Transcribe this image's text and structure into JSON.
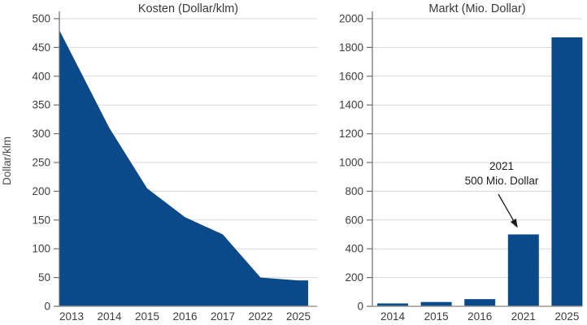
{
  "colors": {
    "series_fill": "#0b4a8a",
    "grid": "#d8d8d8",
    "axis_y": "#6f6f6f",
    "axis_x": "#9a9a9a",
    "tick_text": "#3d3d3d",
    "annotation_text": "#1c1c1c"
  },
  "chart_data": [
    {
      "type": "area",
      "title": "Kosten (Dollar/klm)",
      "ylabel": "Dollar/klm",
      "categories": [
        "2013",
        "2014",
        "2015",
        "2016",
        "2017",
        "2022",
        "2025"
      ],
      "values": [
        480,
        310,
        205,
        155,
        125,
        50,
        45
      ],
      "ylim": [
        0,
        500
      ],
      "ytick_step": 50,
      "grid": true,
      "legend": "none"
    },
    {
      "type": "bar",
      "title": "Markt (Mio. Dollar)",
      "ylabel": "",
      "categories": [
        "2014",
        "2015",
        "2016",
        "2021",
        "2025"
      ],
      "values": [
        20,
        30,
        50,
        500,
        1870
      ],
      "ylim": [
        0,
        2000
      ],
      "ytick_step": 200,
      "grid": true,
      "legend": "none",
      "annotation": {
        "line1": "2021",
        "line2": "500 Mio. Dollar",
        "target_category": "2021",
        "target_value": 500
      }
    }
  ]
}
